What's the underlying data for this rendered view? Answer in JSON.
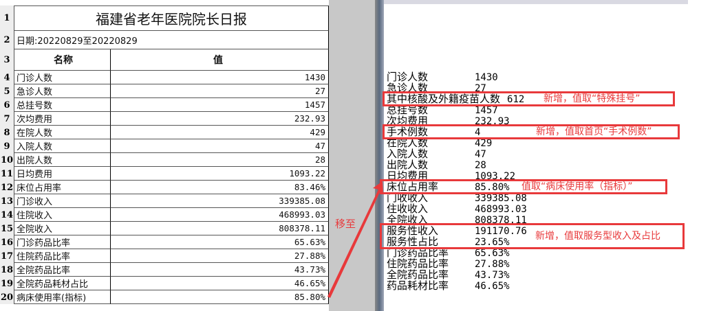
{
  "sheet": {
    "title": "福建省老年医院院长日报",
    "date": "日期:20220829至20220829",
    "header": {
      "name": "名称",
      "value": "值"
    },
    "rows": [
      {
        "name": "门诊人数",
        "value": "1430"
      },
      {
        "name": "急诊人数",
        "value": "27"
      },
      {
        "name": "总挂号数",
        "value": "1457"
      },
      {
        "name": "次均费用",
        "value": "232.93"
      },
      {
        "name": "在院人数",
        "value": "429"
      },
      {
        "name": "入院人数",
        "value": "47"
      },
      {
        "name": "出院人数",
        "value": "28"
      },
      {
        "name": "日均费用",
        "value": "1093.22"
      },
      {
        "name": "床位占用率",
        "value": "83.46%"
      },
      {
        "name": "门诊收入",
        "value": "339385.08"
      },
      {
        "name": "住院收入",
        "value": "468993.03"
      },
      {
        "name": "全院收入",
        "value": "808378.11"
      },
      {
        "name": "门诊药品比率",
        "value": "65.63%"
      },
      {
        "name": "住院药品比率",
        "value": "27.88%"
      },
      {
        "name": "全院药品比率",
        "value": "43.73%"
      },
      {
        "name": "全院药品耗材占比",
        "value": "46.65%"
      },
      {
        "name": "病床使用率(指标)",
        "value": "85.80%"
      }
    ],
    "row_numbers": [
      "1",
      "2",
      "3",
      "4",
      "5",
      "6",
      "7",
      "8",
      "9",
      "10",
      "11",
      "12",
      "13",
      "14",
      "15",
      "16",
      "17",
      "18",
      "19",
      "20"
    ]
  },
  "preview": {
    "items": [
      {
        "name": "门诊人数",
        "value": "1430"
      },
      {
        "name": "急诊人数",
        "value": "27"
      },
      {
        "name": "其中核酸及外籍疫苗人数",
        "value": "612"
      },
      {
        "name": "总挂号数",
        "value": "1457"
      },
      {
        "name": "次均费用",
        "value": "232.93"
      },
      {
        "name": "手术例数",
        "value": "4"
      },
      {
        "name": "在院人数",
        "value": "429"
      },
      {
        "name": "入院人数",
        "value": "47"
      },
      {
        "name": "出院人数",
        "value": "28"
      },
      {
        "name": "日均费用",
        "value": "1093.22"
      },
      {
        "name": "床位占用率",
        "value": "85.80%"
      },
      {
        "name": "门收收入",
        "value": "339385.08"
      },
      {
        "name": "住收收入",
        "value": "468993.03"
      },
      {
        "name": "全院收入",
        "value": "808378.11"
      },
      {
        "name": "服务性收入",
        "value": "191170.76"
      },
      {
        "name": "服务性占比",
        "value": "23.65%"
      },
      {
        "name": "门诊药品比率",
        "value": "65.63%"
      },
      {
        "name": "住院药品比率",
        "value": "27.88%"
      },
      {
        "name": "全院药品比率",
        "value": "43.73%"
      },
      {
        "name": "药品耗材比率",
        "value": "46.65%"
      }
    ]
  },
  "annotations": {
    "move_to": "移至",
    "note1": "新增，值取“特殊挂号”",
    "note2": "新增，值取首页“手术例数”",
    "note3": "值取“病床使用率（指标）”",
    "note4": "新增，值取服务型收入及占比",
    "color": "#e8393b"
  }
}
